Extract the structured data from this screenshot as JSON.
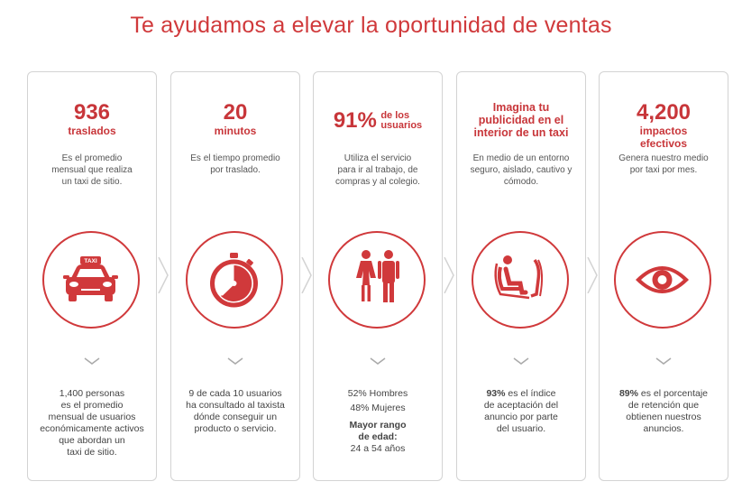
{
  "title": "Te ayudamos a elevar la oportunidad de ventas",
  "accent_color": "#d0393b",
  "cards": [
    {
      "big": "936",
      "sub": "traslados",
      "text": [
        "Es el promedio",
        "mensual que realiza",
        "un taxi de sitio."
      ],
      "icon": "taxi-icon",
      "icon_label": "TAXI",
      "bottom": [
        "1,400 personas",
        "es el promedio",
        "mensual de usuarios",
        "económicamente activos",
        "que abordan un",
        "taxi de sitio."
      ]
    },
    {
      "big": "20",
      "sub": "minutos",
      "text": [
        "Es el tiempo promedio",
        "por traslado."
      ],
      "icon": "stopwatch-icon",
      "bottom": [
        "9 de cada 10 usuarios",
        "ha consultado al taxista",
        "dónde conseguir un",
        "producto o servicio."
      ]
    },
    {
      "big": "91%",
      "sub_line1": "de los",
      "sub_line2": "usuarios",
      "text": [
        "Utiliza el servicio",
        "para ir al trabajo, de",
        "compras y al colegio."
      ],
      "icon": "people-icon",
      "bottom_line1": "52%  Hombres",
      "bottom_line2": "48%  Mujeres",
      "bottom_head1": "Mayor rango",
      "bottom_head2": "de edad:",
      "bottom_line3": "24 a 54 años"
    },
    {
      "head": [
        "Imagina tu",
        "publicidad en el",
        "interior de un taxi"
      ],
      "text": [
        "En medio de un entorno",
        "seguro, aislado, cautivo y",
        "cómodo."
      ],
      "icon": "seated-passenger-icon",
      "bottom_pct": "93%",
      "bottom": [
        "es el índice",
        "de aceptación del",
        "anuncio por parte",
        "del usuario."
      ]
    },
    {
      "big": "4,200",
      "sub": [
        "impactos",
        "efectivos"
      ],
      "text": [
        "Genera nuestro medio",
        "por taxi por mes."
      ],
      "icon": "eye-icon",
      "bottom_pct": "89%",
      "bottom": [
        "es el porcentaje",
        "de retención que",
        "obtienen nuestros",
        "anuncios."
      ]
    }
  ]
}
